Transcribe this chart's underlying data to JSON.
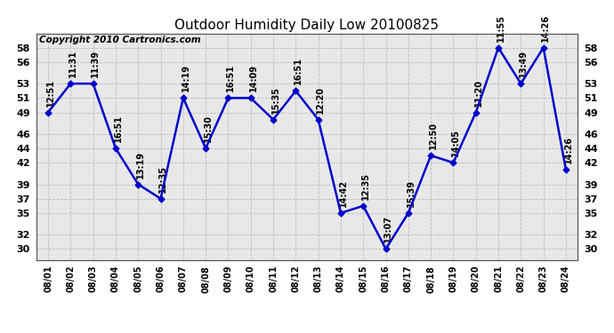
{
  "title": "Outdoor Humidity Daily Low 20100825",
  "copyright": "Copyright 2010 Cartronics.com",
  "line_color": "#0000cc",
  "background_color": "#ffffff",
  "plot_bg_color": "#e8e8e8",
  "grid_color": "#bbbbbb",
  "x_labels": [
    "08/01",
    "08/02",
    "08/03",
    "08/04",
    "08/05",
    "08/06",
    "08/07",
    "08/08",
    "08/09",
    "08/10",
    "08/11",
    "08/12",
    "08/13",
    "08/14",
    "08/15",
    "08/16",
    "08/17",
    "08/18",
    "08/19",
    "08/20",
    "08/21",
    "08/22",
    "08/23",
    "08/24"
  ],
  "y_values": [
    49,
    53,
    53,
    44,
    39,
    37,
    51,
    44,
    51,
    51,
    48,
    52,
    48,
    35,
    36,
    30,
    35,
    43,
    42,
    49,
    58,
    53,
    58,
    41
  ],
  "y_ticks": [
    30,
    32,
    35,
    37,
    39,
    42,
    44,
    46,
    49,
    51,
    53,
    56,
    58
  ],
  "ylim": [
    28.5,
    60
  ],
  "time_labels": [
    "12:51",
    "11:31",
    "11:39",
    "16:51",
    "13:19",
    "12:35",
    "14:19",
    "15:30",
    "16:51",
    "14:09",
    "15:35",
    "16:51",
    "12:20",
    "14:42",
    "12:35",
    "13:07",
    "15:39",
    "12:50",
    "14:05",
    "11:20",
    "11:55",
    "13:49",
    "14:26",
    "14:26"
  ],
  "marker_size": 3.5,
  "line_width": 1.8,
  "annotation_fontsize": 7,
  "title_fontsize": 11,
  "copyright_fontsize": 7.5,
  "tick_fontsize": 8,
  "xtick_fontsize": 7
}
